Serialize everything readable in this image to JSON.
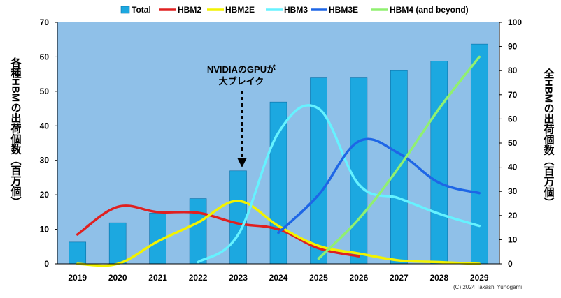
{
  "chart_data": {
    "type": "bar+line",
    "categories": [
      "2019",
      "2020",
      "2021",
      "2022",
      "2023",
      "2024",
      "2025",
      "2026",
      "2027",
      "2028",
      "2029"
    ],
    "bar_series": {
      "name": "Total",
      "axis": "right",
      "color": "#1ca8e0",
      "values": [
        9,
        17,
        21,
        27,
        38.5,
        67,
        77,
        77,
        80,
        84,
        91
      ]
    },
    "line_series": [
      {
        "name": "HBM2",
        "axis": "left",
        "color": "#e02020",
        "values": [
          8.5,
          16.5,
          15,
          14.8,
          11.7,
          10,
          4.5,
          2.2,
          null,
          null,
          null
        ]
      },
      {
        "name": "HBM2E",
        "axis": "left",
        "color": "#f2f200",
        "values": [
          0,
          0,
          6.5,
          12,
          18.2,
          11,
          5.2,
          3,
          1,
          0.5,
          0
        ]
      },
      {
        "name": "HBM3",
        "axis": "left",
        "color": "#66f2ff",
        "values": [
          null,
          null,
          null,
          0.5,
          8.5,
          38,
          45,
          23,
          19,
          14.5,
          11
        ]
      },
      {
        "name": "HBM3E",
        "axis": "left",
        "color": "#1e66e6",
        "values": [
          null,
          null,
          null,
          null,
          null,
          9,
          20,
          35.5,
          32,
          23.5,
          20.5
        ]
      },
      {
        "name": "HBM4 (and beyond)",
        "axis": "left",
        "color": "#90f070",
        "values": [
          null,
          null,
          null,
          null,
          null,
          null,
          1.5,
          13,
          28,
          45,
          60
        ]
      }
    ],
    "left_axis": {
      "label": "各種HBMの出荷個数（百万個）",
      "ylim": [
        0,
        70
      ],
      "ticks": [
        0,
        10,
        20,
        30,
        40,
        50,
        60,
        70
      ]
    },
    "right_axis": {
      "label": "全HBMの出荷個数（百万個）",
      "ylim": [
        0,
        100
      ],
      "ticks": [
        0,
        10,
        20,
        30,
        40,
        50,
        60,
        70,
        80,
        90,
        100
      ]
    },
    "legend": [
      "Total",
      "HBM2",
      "HBM2E",
      "HBM3",
      "HBM3E",
      "HBM4 (and beyond)"
    ],
    "legend_position": "top",
    "annotation": {
      "line1": "NVIDIAのGPUが",
      "line2": "大ブレイク",
      "category": "2023"
    },
    "copyright": "(C) 2024 Takashi Yunogami",
    "plot_background": "#8fc0e8"
  }
}
